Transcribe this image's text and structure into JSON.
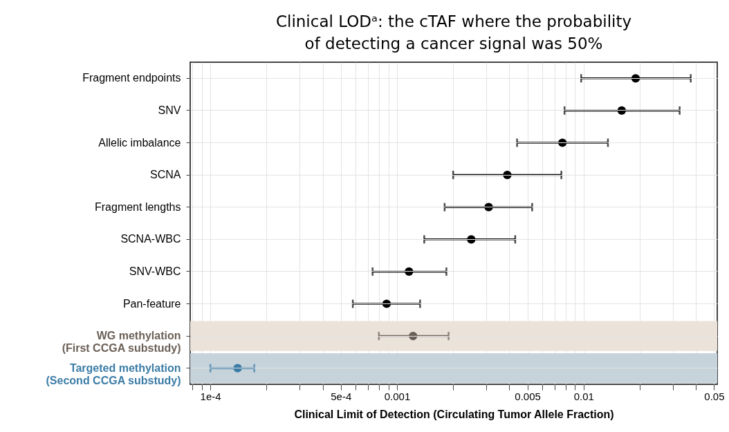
{
  "chart_data": {
    "type": "scatter",
    "orientation": "horizontal",
    "title": "Clinical LODᵃ: the cTAF where the probability\nof detecting a cancer signal was 50%",
    "xlabel": "Clinical Limit of Detection (Circulating Tumor Allele Fraction)",
    "categories": [
      "Fragment endpoints",
      "SNV",
      "Allelic imbalance",
      "SCNA",
      "Fragment lengths",
      "SCNA-WBC",
      "SNV-WBC",
      "Pan-feature",
      "WG methylation (First CCGA substudy)",
      "Targeted methylation (Second CCGA substudy)"
    ],
    "series": [
      {
        "color": "#000000",
        "values": [
          0.019,
          0.016,
          0.0077,
          0.0039,
          0.0031,
          0.0025,
          0.00116,
          0.00088,
          null,
          null
        ],
        "errors": [
          [
            0.0097,
            0.0375
          ],
          [
            0.0079,
            0.0327
          ],
          [
            0.0044,
            0.0135
          ],
          [
            0.002,
            0.0076
          ],
          [
            0.0018,
            0.0053
          ],
          [
            0.0014,
            0.0043
          ],
          [
            0.00074,
            0.00184
          ],
          [
            0.00058,
            0.00133
          ],
          null,
          null
        ]
      },
      {
        "color": "#6b6057",
        "values": [
          null,
          null,
          null,
          null,
          null,
          null,
          null,
          null,
          0.00122,
          null
        ],
        "errors": [
          null,
          null,
          null,
          null,
          null,
          null,
          null,
          null,
          [
            0.0008,
            0.00189
          ],
          null
        ]
      },
      {
        "color": "#3b7ca6",
        "values": [
          null,
          null,
          null,
          null,
          null,
          null,
          null,
          null,
          null,
          0.00014
        ],
        "errors": [
          null,
          null,
          null,
          null,
          null,
          null,
          null,
          null,
          null,
          [
            0.0001,
            0.000172
          ]
        ]
      }
    ],
    "bands": [
      {
        "axis": "y",
        "from": "WG methylation (First CCGA substudy)",
        "to": "WG methylation (First CCGA substudy)",
        "color": "#ebe2da"
      },
      {
        "axis": "y",
        "from": "Targeted methylation (Second CCGA substudy)",
        "to": "Targeted methylation (Second CCGA substudy)",
        "color": "#c6d3db"
      }
    ],
    "log": "x",
    "xlim": [
      7.8e-05,
      0.052
    ],
    "xticks": [
      {
        "value": 8e-05,
        "label": null
      },
      {
        "value": 9e-05,
        "label": null
      },
      {
        "value": 0.0001,
        "label": "1e-4"
      },
      {
        "value": 0.0002,
        "label": null
      },
      {
        "value": 0.0003,
        "label": null
      },
      {
        "value": 0.0004,
        "label": null
      },
      {
        "value": 0.0005,
        "label": "5e-4"
      },
      {
        "value": 0.0006,
        "label": null
      },
      {
        "value": 0.0007,
        "label": null
      },
      {
        "value": 0.0008,
        "label": null
      },
      {
        "value": 0.0009,
        "label": null
      },
      {
        "value": 0.001,
        "label": "0.001"
      },
      {
        "value": 0.002,
        "label": null
      },
      {
        "value": 0.003,
        "label": null
      },
      {
        "value": 0.004,
        "label": null
      },
      {
        "value": 0.005,
        "label": "0.005"
      },
      {
        "value": 0.006,
        "label": null
      },
      {
        "value": 0.007,
        "label": null
      },
      {
        "value": 0.008,
        "label": null
      },
      {
        "value": 0.009,
        "label": null
      },
      {
        "value": 0.01,
        "label": "0.01"
      },
      {
        "value": 0.02,
        "label": null
      },
      {
        "value": 0.03,
        "label": null
      },
      {
        "value": 0.04,
        "label": null
      },
      {
        "value": 0.05,
        "label": "0.05"
      }
    ],
    "grid": true,
    "marker": "circle"
  }
}
